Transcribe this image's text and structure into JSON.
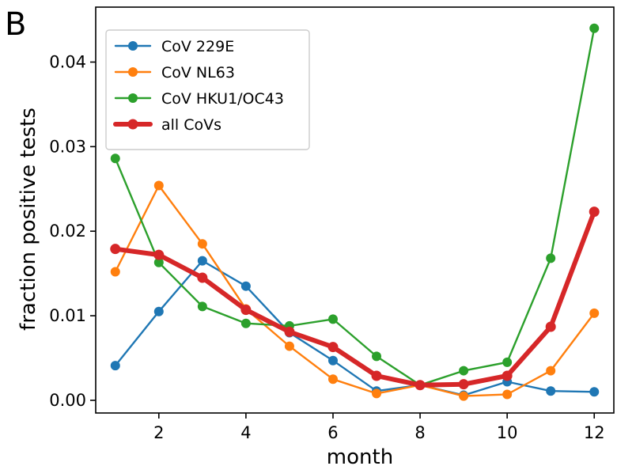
{
  "panel_label": "B",
  "chart_data": {
    "type": "line",
    "xlabel": "month",
    "ylabel": "fraction positive tests",
    "xlim": [
      0.55,
      12.45
    ],
    "ylim": [
      -0.0015,
      0.0465
    ],
    "xticks": [
      2,
      4,
      6,
      8,
      10,
      12
    ],
    "xtick_labels": [
      "2",
      "4",
      "6",
      "8",
      "10",
      "12"
    ],
    "yticks": [
      0.0,
      0.01,
      0.02,
      0.03,
      0.04
    ],
    "ytick_labels": [
      "0.00",
      "0.01",
      "0.02",
      "0.03",
      "0.04"
    ],
    "legend_position": "top-left",
    "grid": false,
    "x": [
      1,
      2,
      3,
      4,
      5,
      6,
      7,
      8,
      9,
      10,
      11,
      12
    ],
    "series": [
      {
        "name": "CoV 229E",
        "color": "#1f77b4",
        "width": "thin",
        "values": [
          0.0041,
          0.0105,
          0.0165,
          0.0135,
          0.008,
          0.0047,
          0.0011,
          0.0018,
          0.0006,
          0.0022,
          0.0011,
          0.001
        ]
      },
      {
        "name": "CoV NL63",
        "color": "#ff7f0e",
        "width": "thin",
        "values": [
          0.0152,
          0.0254,
          0.0185,
          0.0108,
          0.0064,
          0.0025,
          0.0008,
          0.0018,
          0.0005,
          0.0007,
          0.0035,
          0.0103
        ]
      },
      {
        "name": "CoV HKU1/OC43",
        "color": "#2ca02c",
        "width": "thin",
        "values": [
          0.0286,
          0.0163,
          0.0111,
          0.0091,
          0.0088,
          0.0096,
          0.0052,
          0.0018,
          0.0035,
          0.0045,
          0.0168,
          0.044
        ]
      },
      {
        "name": "all CoVs",
        "color": "#d62728",
        "width": "thick",
        "values": [
          0.0179,
          0.0172,
          0.0145,
          0.0107,
          0.0081,
          0.0063,
          0.0029,
          0.0018,
          0.0019,
          0.0029,
          0.0087,
          0.0223
        ]
      }
    ]
  }
}
